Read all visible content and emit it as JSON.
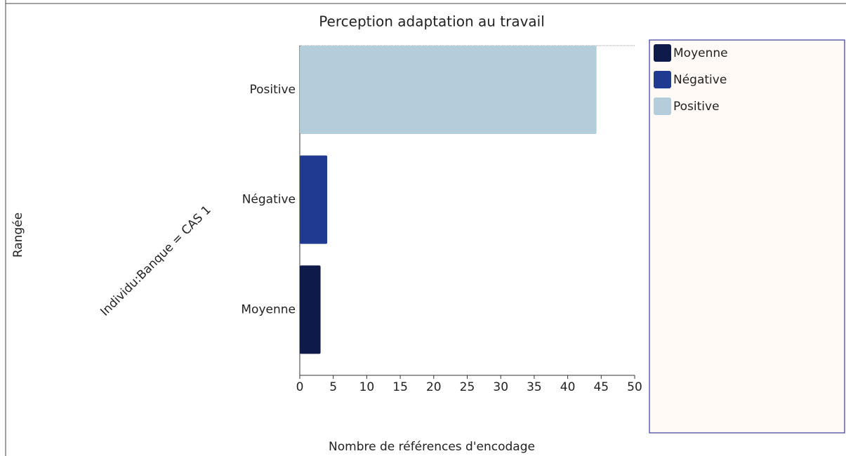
{
  "chart_data": {
    "type": "bar",
    "orientation": "horizontal",
    "title": "Perception adaptation au travail",
    "y_label": "Rangée",
    "group_label": "Individu:Banque = CAS 1",
    "x_label": "Nombre de références d'encodage",
    "categories": [
      "Positive",
      "Négative",
      "Moyenne"
    ],
    "values": [
      44.3,
      4.1,
      3.1
    ],
    "colors": [
      "#b3cddb",
      "#213a91",
      "#0e1a4a"
    ],
    "xlim": [
      0,
      50
    ],
    "xticks": [
      0,
      5,
      10,
      15,
      20,
      25,
      30,
      35,
      40,
      45,
      50
    ],
    "legend": "right"
  }
}
